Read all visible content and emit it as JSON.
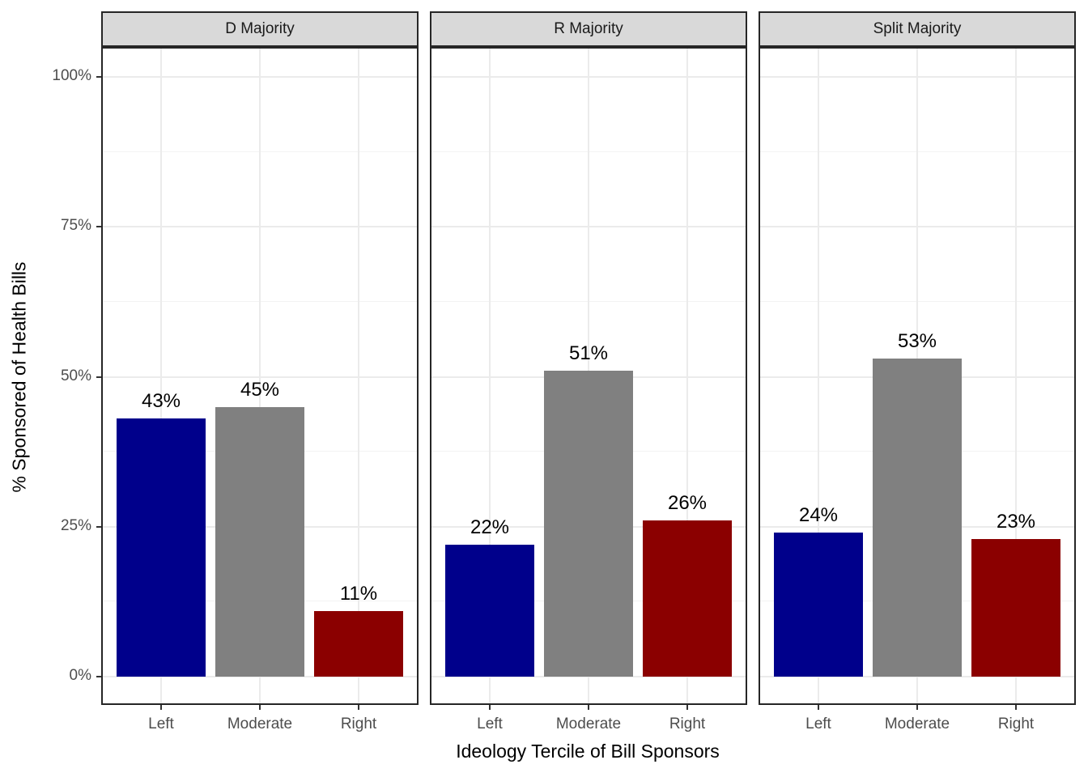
{
  "chart_data": {
    "type": "bar",
    "title": "",
    "xlabel": "Ideology Tercile of Bill Sponsors",
    "ylabel": "% Sponsored of Health Bills",
    "categories": [
      "Left",
      "Moderate",
      "Right"
    ],
    "facets": [
      {
        "label": "D Majority",
        "values": [
          43,
          45,
          11
        ],
        "bar_labels": [
          "43%",
          "45%",
          "11%"
        ]
      },
      {
        "label": "R Majority",
        "values": [
          22,
          51,
          26
        ],
        "bar_labels": [
          "22%",
          "51%",
          "26%"
        ]
      },
      {
        "label": "Split Majority",
        "values": [
          24,
          53,
          23
        ],
        "bar_labels": [
          "24%",
          "53%",
          "23%"
        ]
      }
    ],
    "bar_colors": [
      "#00008B",
      "#808080",
      "#8B0000"
    ],
    "y_axis": {
      "ticks": [
        {
          "value": 0,
          "label": "0%"
        },
        {
          "value": 25,
          "label": "25%"
        },
        {
          "value": 50,
          "label": "50%"
        },
        {
          "value": 75,
          "label": "75%"
        },
        {
          "value": 100,
          "label": "100%"
        }
      ],
      "range": [
        0,
        105
      ]
    },
    "grid": {
      "major_horizontal": [
        0,
        25,
        50,
        75,
        100
      ],
      "minor_horizontal": [
        12.5,
        37.5,
        62.5,
        87.5
      ],
      "vertical": "category-centers"
    },
    "legend": "none",
    "colors": {
      "strip_background": "#D9D9D9",
      "panel_border": "#262626",
      "grid_major": "#EBEBEB",
      "grid_minor": "#F3F3F3",
      "tick_mark": "#333333",
      "tick_label": "#4D4D4D",
      "bar_label": "#000000",
      "axis_title": "#000000",
      "background": "#FFFFFF"
    }
  }
}
